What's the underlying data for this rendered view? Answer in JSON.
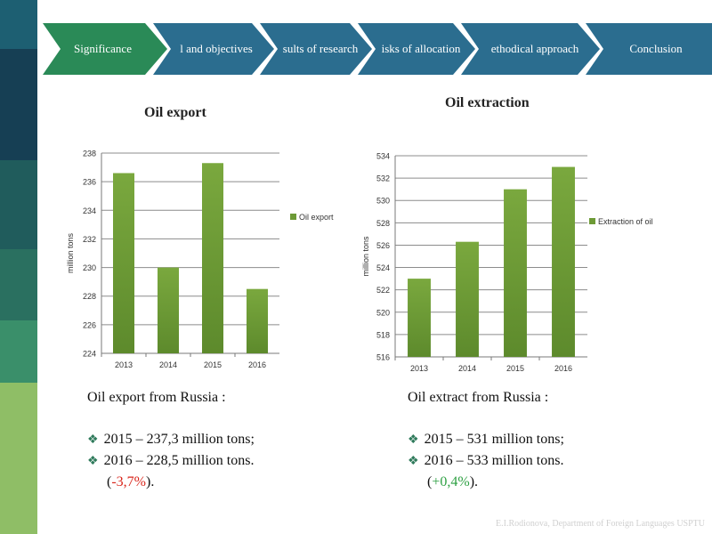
{
  "nav": {
    "items": [
      {
        "label": "Significance",
        "active": true
      },
      {
        "label": "l and objectives",
        "active": false
      },
      {
        "label": "sults of  research",
        "active": false
      },
      {
        "label": "isks of allocation",
        "active": false
      },
      {
        "label": "ethodical approach",
        "active": false
      },
      {
        "label": "Conclusion",
        "active": false
      }
    ],
    "colors": {
      "active": "#2a8a57",
      "inactive": "#2b6d8f"
    }
  },
  "sidebar_colors": [
    "#1d5f72",
    "#163f54",
    "#205c5c",
    "#2a7060",
    "#3a8f6a",
    "#8fbe66"
  ],
  "chart_data": [
    {
      "type": "bar",
      "title": "Oil export",
      "categories": [
        "2013",
        "2014",
        "2015",
        "2016"
      ],
      "series": [
        {
          "name": "Oil export",
          "values": [
            236.6,
            230,
            237.3,
            228.5
          ]
        }
      ],
      "ylabel": "million tons",
      "xlabel": "",
      "ylim": [
        224,
        238
      ],
      "yticks": [
        "224",
        "226",
        "228",
        "230",
        "232",
        "234",
        "236",
        "238"
      ],
      "grid": true,
      "legend": "right",
      "bar_color": "#6d9a36"
    },
    {
      "type": "bar",
      "title": "Oil extraction",
      "categories": [
        "2013",
        "2014",
        "2015",
        "2016"
      ],
      "series": [
        {
          "name": "Extraction of oil",
          "values": [
            523,
            526.3,
            531,
            533
          ]
        }
      ],
      "ylabel": "million tons",
      "xlabel": "",
      "ylim": [
        516,
        534
      ],
      "yticks": [
        "516",
        "518",
        "520",
        "522",
        "524",
        "526",
        "528",
        "530",
        "532",
        "534"
      ],
      "grid": true,
      "legend": "right",
      "bar_color": "#6d9a36"
    }
  ],
  "left_info": {
    "header": "Oil export from Russia :",
    "lines": [
      "2015  – 237,3 million tons;",
      "2016  – 228,5 million tons."
    ],
    "change_open": "(",
    "change": "-3,7%",
    "change_close": ").",
    "change_color": "#d9261c"
  },
  "right_info": {
    "header": "Oil extract from Russia :",
    "lines": [
      "2015 – 531 million tons;",
      "2016 – 533 million tons."
    ],
    "change_open": "(",
    "change": "+0,4%",
    "change_close": ").",
    "change_color": "#2ea043"
  },
  "footer": "E.I.Rodionova, Department of Foreign Languages USPTU"
}
